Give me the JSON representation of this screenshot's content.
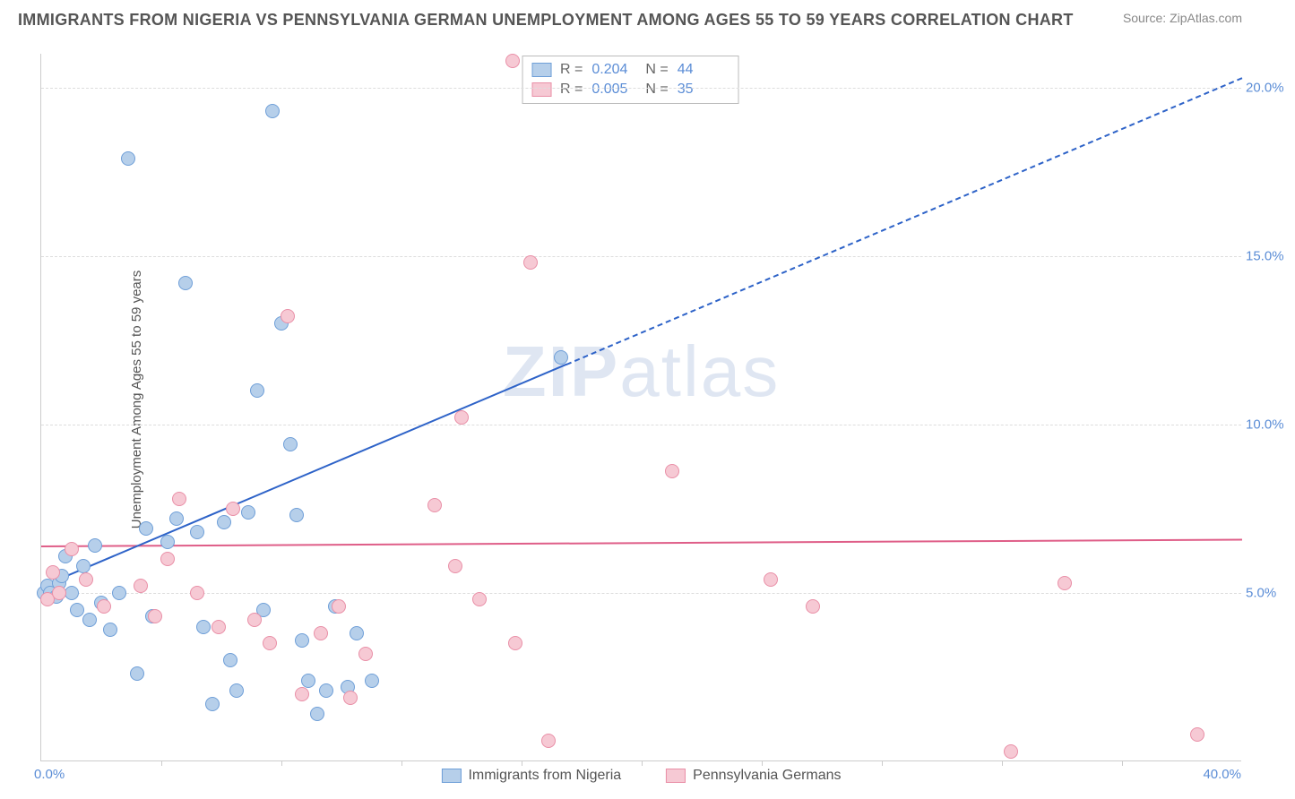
{
  "title": "IMMIGRANTS FROM NIGERIA VS PENNSYLVANIA GERMAN UNEMPLOYMENT AMONG AGES 55 TO 59 YEARS CORRELATION CHART",
  "source": "Source: ZipAtlas.com",
  "ylabel": "Unemployment Among Ages 55 to 59 years",
  "watermark_bold": "ZIP",
  "watermark_light": "atlas",
  "chart": {
    "type": "scatter",
    "xlim": [
      0,
      40
    ],
    "ylim": [
      0,
      21
    ],
    "yticks": [
      {
        "v": 5.0,
        "label": "5.0%"
      },
      {
        "v": 10.0,
        "label": "10.0%"
      },
      {
        "v": 15.0,
        "label": "15.0%"
      },
      {
        "v": 20.0,
        "label": "20.0%"
      }
    ],
    "x_minor_ticks": [
      4,
      8,
      12,
      16,
      20,
      24,
      28,
      32,
      36
    ],
    "xtick_left": "0.0%",
    "xtick_right": "40.0%",
    "background_color": "#ffffff",
    "grid_color": "#dddddd",
    "marker_size": 16,
    "series": [
      {
        "key": "nigeria",
        "label": "Immigrants from Nigeria",
        "fill": "#b6cfea",
        "stroke": "#6f9fd8",
        "trend_color": "#2e63c8",
        "R": "0.204",
        "N": "44",
        "trend": {
          "x1": 0,
          "y1": 5.2,
          "x2": 17.5,
          "y2": 11.8,
          "dash_to_x": 40,
          "dash_to_y": 20.3
        },
        "points": [
          [
            0.1,
            5.0
          ],
          [
            0.2,
            5.2
          ],
          [
            0.3,
            5.0
          ],
          [
            0.5,
            4.9
          ],
          [
            0.6,
            5.3
          ],
          [
            0.7,
            5.5
          ],
          [
            0.8,
            6.1
          ],
          [
            1.0,
            5.0
          ],
          [
            1.2,
            4.5
          ],
          [
            1.4,
            5.8
          ],
          [
            1.6,
            4.2
          ],
          [
            1.8,
            6.4
          ],
          [
            2.0,
            4.7
          ],
          [
            2.3,
            3.9
          ],
          [
            2.6,
            5.0
          ],
          [
            2.9,
            17.9
          ],
          [
            3.2,
            2.6
          ],
          [
            3.5,
            6.9
          ],
          [
            3.7,
            4.3
          ],
          [
            4.2,
            6.5
          ],
          [
            4.5,
            7.2
          ],
          [
            4.8,
            14.2
          ],
          [
            5.2,
            6.8
          ],
          [
            5.4,
            4.0
          ],
          [
            5.7,
            1.7
          ],
          [
            6.1,
            7.1
          ],
          [
            6.3,
            3.0
          ],
          [
            6.5,
            2.1
          ],
          [
            6.9,
            7.4
          ],
          [
            7.2,
            11.0
          ],
          [
            7.4,
            4.5
          ],
          [
            7.7,
            19.3
          ],
          [
            8.0,
            13.0
          ],
          [
            8.3,
            9.4
          ],
          [
            8.5,
            7.3
          ],
          [
            8.7,
            3.6
          ],
          [
            8.9,
            2.4
          ],
          [
            9.2,
            1.4
          ],
          [
            9.5,
            2.1
          ],
          [
            9.8,
            4.6
          ],
          [
            10.2,
            2.2
          ],
          [
            10.5,
            3.8
          ],
          [
            11.0,
            2.4
          ],
          [
            17.3,
            12.0
          ]
        ]
      },
      {
        "key": "pagerman",
        "label": "Pennsylvania Germans",
        "fill": "#f6c9d4",
        "stroke": "#e98fa7",
        "trend_color": "#df5e88",
        "R": "0.005",
        "N": "35",
        "trend": {
          "x1": 0,
          "y1": 6.4,
          "x2": 40,
          "y2": 6.6
        },
        "points": [
          [
            0.2,
            4.8
          ],
          [
            0.4,
            5.6
          ],
          [
            0.6,
            5.0
          ],
          [
            1.0,
            6.3
          ],
          [
            1.5,
            5.4
          ],
          [
            2.1,
            4.6
          ],
          [
            3.3,
            5.2
          ],
          [
            3.8,
            4.3
          ],
          [
            4.2,
            6.0
          ],
          [
            4.6,
            7.8
          ],
          [
            5.2,
            5.0
          ],
          [
            5.9,
            4.0
          ],
          [
            6.4,
            7.5
          ],
          [
            7.1,
            4.2
          ],
          [
            7.6,
            3.5
          ],
          [
            8.2,
            13.2
          ],
          [
            8.7,
            2.0
          ],
          [
            9.3,
            3.8
          ],
          [
            9.9,
            4.6
          ],
          [
            10.3,
            1.9
          ],
          [
            10.8,
            3.2
          ],
          [
            13.1,
            7.6
          ],
          [
            13.8,
            5.8
          ],
          [
            14.0,
            10.2
          ],
          [
            14.6,
            4.8
          ],
          [
            15.8,
            3.5
          ],
          [
            15.7,
            20.8
          ],
          [
            16.3,
            14.8
          ],
          [
            16.9,
            0.6
          ],
          [
            21.0,
            8.6
          ],
          [
            24.3,
            5.4
          ],
          [
            25.7,
            4.6
          ],
          [
            32.3,
            0.3
          ],
          [
            34.1,
            5.3
          ],
          [
            38.5,
            0.8
          ]
        ]
      }
    ]
  }
}
